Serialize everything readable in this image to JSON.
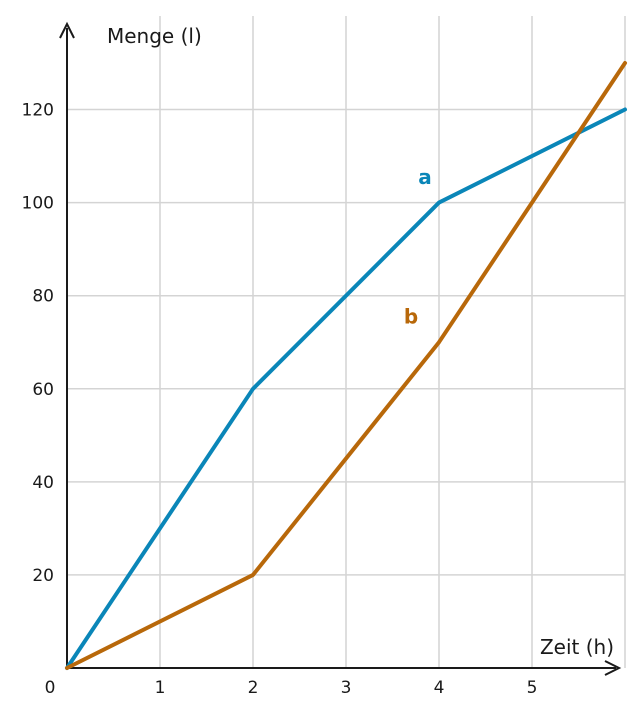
{
  "chart_data": {
    "type": "line",
    "xlabel": "Zeit (h)",
    "ylabel": "Menge (l)",
    "origin_label": "0",
    "xlim": [
      0,
      6
    ],
    "ylim": [
      0,
      130
    ],
    "x_ticks": [
      1,
      2,
      3,
      4,
      5
    ],
    "x_tick_labels": [
      "1",
      "2",
      "3",
      "4",
      "5"
    ],
    "y_ticks": [
      20,
      40,
      60,
      80,
      100,
      120
    ],
    "y_tick_labels": [
      "20",
      "40",
      "60",
      "80",
      "100",
      "120"
    ],
    "grid": true,
    "series": [
      {
        "name": "a",
        "color": "#0a86b8",
        "x": [
          0,
          2,
          4,
          6
        ],
        "y": [
          0,
          60,
          100,
          120
        ],
        "label_at": [
          3.85,
          104
        ]
      },
      {
        "name": "b",
        "color": "#b8680a",
        "x": [
          0,
          2,
          4,
          5,
          6
        ],
        "y": [
          0,
          20,
          70,
          100,
          130
        ],
        "label_at": [
          3.7,
          74
        ]
      }
    ]
  }
}
